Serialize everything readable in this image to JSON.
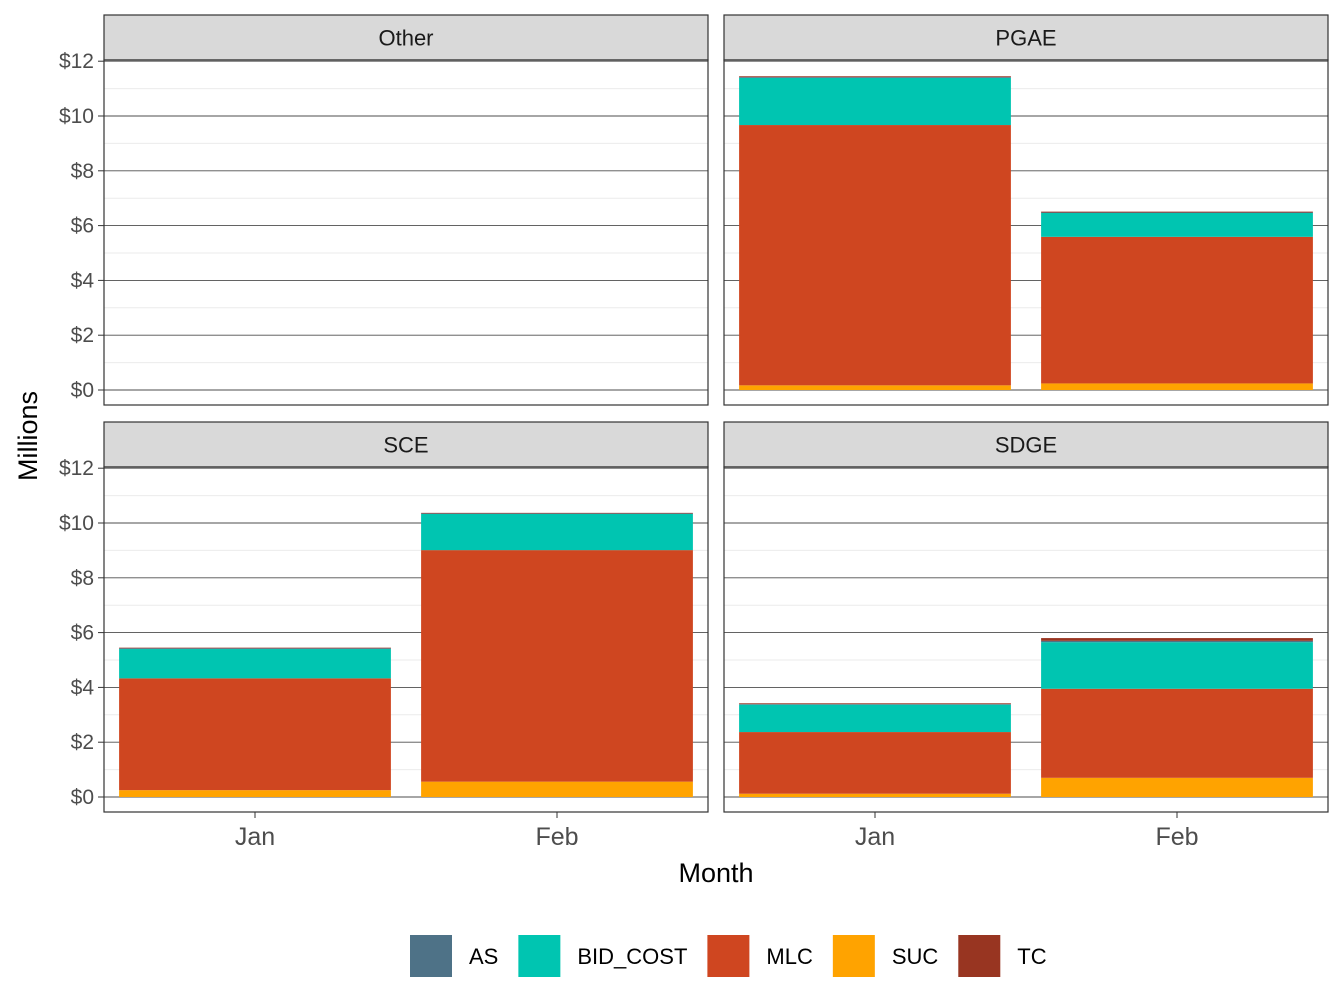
{
  "chart_data": {
    "type": "bar",
    "stacked": true,
    "faceted": true,
    "xlabel": "Month",
    "ylabel": "Millions",
    "categories": [
      "Jan",
      "Feb"
    ],
    "ylim": [
      0,
      12
    ],
    "yticks": [
      0,
      2,
      4,
      6,
      8,
      10,
      12
    ],
    "ytick_labels": [
      "$0",
      "$2",
      "$4",
      "$6",
      "$8",
      "$10",
      "$12"
    ],
    "grid": true,
    "legend_position": "bottom",
    "series_order": [
      "SUC",
      "MLC",
      "BID_COST",
      "AS",
      "TC"
    ],
    "legend": [
      {
        "name": "AS",
        "color": "#4e7287"
      },
      {
        "name": "BID_COST",
        "color": "#00c5b1"
      },
      {
        "name": "MLC",
        "color": "#cf4620"
      },
      {
        "name": "SUC",
        "color": "#ffa300"
      },
      {
        "name": "TC",
        "color": "#983521"
      }
    ],
    "panels": [
      {
        "name": "Other",
        "values": {
          "Jan": {
            "TC": 0,
            "SUC": 0,
            "MLC": 0,
            "BID_COST": 0,
            "AS": 0
          },
          "Feb": {
            "TC": 0,
            "SUC": 0,
            "MLC": 0,
            "BID_COST": 0,
            "AS": 0
          }
        }
      },
      {
        "name": "PGAE",
        "values": {
          "Jan": {
            "TC": 0.03,
            "SUC": 0.17,
            "MLC": 9.5,
            "BID_COST": 1.72,
            "AS": 0.03
          },
          "Feb": {
            "TC": 0.03,
            "SUC": 0.24,
            "MLC": 5.35,
            "BID_COST": 0.87,
            "AS": 0.02
          }
        }
      },
      {
        "name": "SCE",
        "values": {
          "Jan": {
            "TC": 0.02,
            "SUC": 0.25,
            "MLC": 4.08,
            "BID_COST": 1.07,
            "AS": 0.03
          },
          "Feb": {
            "TC": 0.02,
            "SUC": 0.56,
            "MLC": 8.45,
            "BID_COST": 1.32,
            "AS": 0.02
          }
        }
      },
      {
        "name": "SDGE",
        "values": {
          "Jan": {
            "TC": 0.03,
            "SUC": 0.12,
            "MLC": 2.25,
            "BID_COST": 1.0,
            "AS": 0.02
          },
          "Feb": {
            "TC": 0.1,
            "SUC": 0.7,
            "MLC": 3.25,
            "BID_COST": 1.7,
            "AS": 0.05
          }
        }
      }
    ]
  }
}
